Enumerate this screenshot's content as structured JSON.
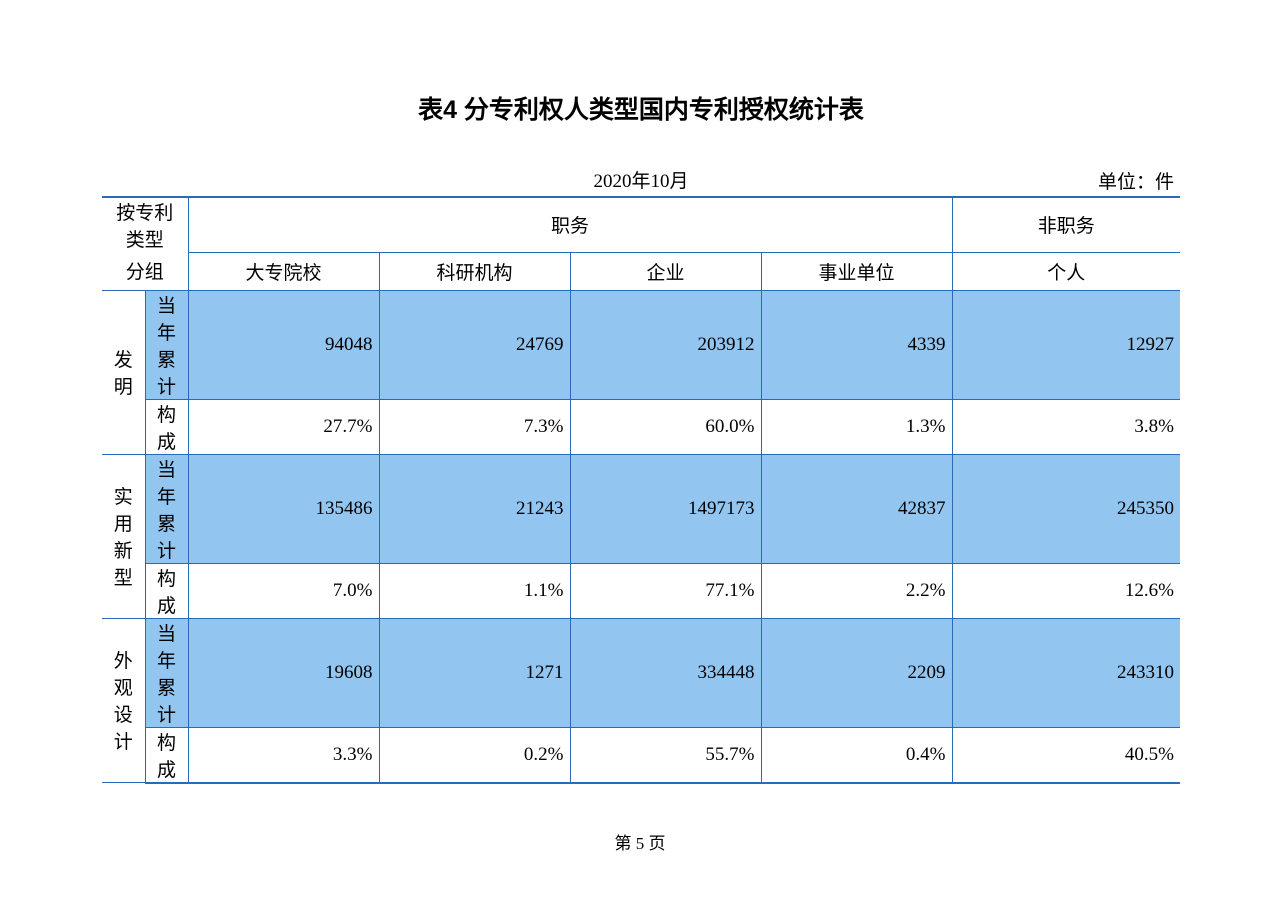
{
  "title": "表4  分专利权人类型国内专利授权统计表",
  "date": "2020年10月",
  "unit": "单位：件",
  "footer": "第 5 页",
  "colors": {
    "border": "#2a6bb8",
    "shaded_bg": "#92c5f0",
    "page_bg": "#ffffff",
    "text": "#000000"
  },
  "headers": {
    "group_top": "按专利类型",
    "group_bottom": "分组",
    "duty": "职务",
    "nonduty": "非职务",
    "col1": "大专院校",
    "col2": "科研机构",
    "col3": "企业",
    "col4": "事业单位",
    "col5": "个人"
  },
  "row_labels": {
    "cum": "当年累计",
    "comp": "构成"
  },
  "categories": [
    {
      "name": "发明",
      "cum": [
        "94048",
        "24769",
        "203912",
        "4339",
        "12927"
      ],
      "comp": [
        "27.7%",
        "7.3%",
        "60.0%",
        "1.3%",
        "3.8%"
      ]
    },
    {
      "name": "实用新型",
      "cum": [
        "135486",
        "21243",
        "1497173",
        "42837",
        "245350"
      ],
      "comp": [
        "7.0%",
        "1.1%",
        "77.1%",
        "2.2%",
        "12.6%"
      ]
    },
    {
      "name": "外观设计",
      "cum": [
        "19608",
        "1271",
        "334448",
        "2209",
        "243310"
      ],
      "comp": [
        "3.3%",
        "0.2%",
        "55.7%",
        "0.4%",
        "40.5%"
      ]
    }
  ]
}
